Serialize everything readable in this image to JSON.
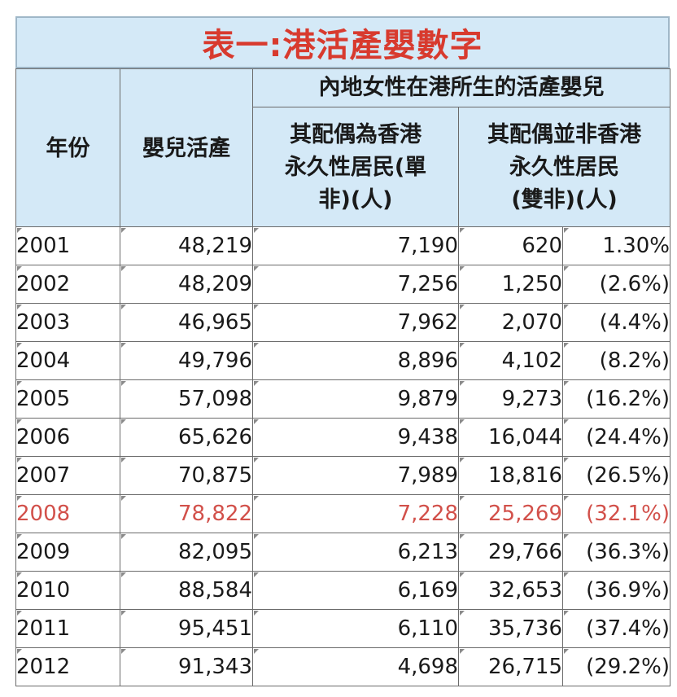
{
  "title": "表一:港活產嬰數字",
  "headers": {
    "year": "年份",
    "live_births": "嬰兒活產",
    "mainland_group": "內地女性在港所生的活產嬰兒",
    "spouse_pr": [
      "其配偶為香港",
      "永久性居民(單",
      "非)(人)"
    ],
    "spouse_non_pr": [
      "其配偶並非香港",
      "永久性居民",
      "(雙非)(人)"
    ]
  },
  "rows": [
    {
      "year": "2001",
      "live": "48,219",
      "type1": "7,190",
      "type2": "620",
      "pct": "1.30%"
    },
    {
      "year": "2002",
      "live": "48,209",
      "type1": "7,256",
      "type2": "1,250",
      "pct": "(2.6%)"
    },
    {
      "year": "2003",
      "live": "46,965",
      "type1": "7,962",
      "type2": "2,070",
      "pct": "(4.4%)"
    },
    {
      "year": "2004",
      "live": "49,796",
      "type1": "8,896",
      "type2": "4,102",
      "pct": "(8.2%)"
    },
    {
      "year": "2005",
      "live": "57,098",
      "type1": "9,879",
      "type2": "9,273",
      "pct": "(16.2%)"
    },
    {
      "year": "2006",
      "live": "65,626",
      "type1": "9,438",
      "type2": "16,044",
      "pct": "(24.4%)"
    },
    {
      "year": "2007",
      "live": "70,875",
      "type1": "7,989",
      "type2": "18,816",
      "pct": "(26.5%)"
    },
    {
      "year": "2008",
      "live": "78,822",
      "type1": "7,228",
      "type2": "25,269",
      "pct": "(32.1%)"
    },
    {
      "year": "2009",
      "live": "82,095",
      "type1": "6,213",
      "type2": "29,766",
      "pct": "(36.3%)"
    },
    {
      "year": "2010",
      "live": "88,584",
      "type1": "6,169",
      "type2": "32,653",
      "pct": "(36.9%)"
    },
    {
      "year": "2011",
      "live": "95,451",
      "type1": "6,110",
      "type2": "35,736",
      "pct": "(37.4%)"
    },
    {
      "year": "2012",
      "live": "91,343",
      "type1": "4,698",
      "type2": "26,715",
      "pct": "(29.2%)"
    }
  ],
  "colors": {
    "title_text": "#d83a2e",
    "header_bg": "#d4e9f7",
    "highlight_text": "#d2504a"
  }
}
